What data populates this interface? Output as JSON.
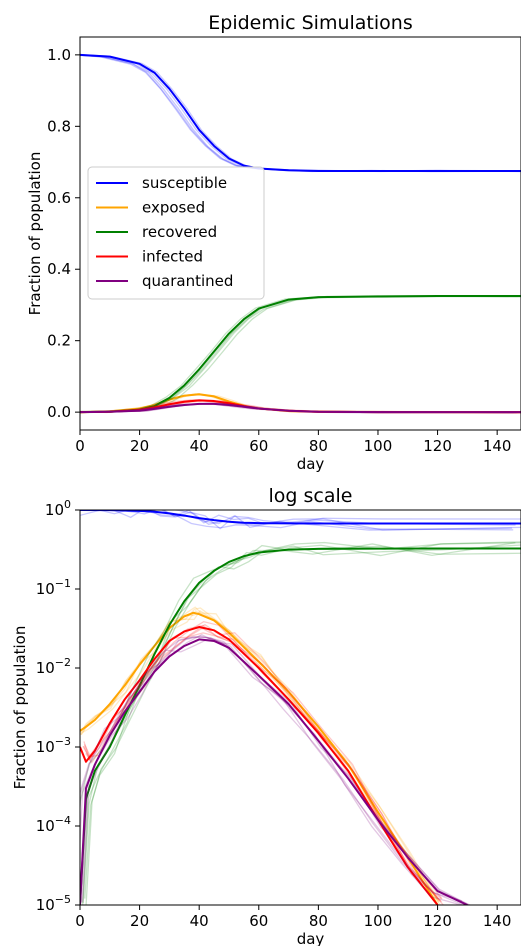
{
  "chart_data": [
    {
      "type": "line",
      "title": "Epidemic Simulations",
      "xlabel": "day",
      "ylabel": "Fraction of population",
      "xlim": [
        0,
        148
      ],
      "ylim": [
        -0.05,
        1.05
      ],
      "yscale": "linear",
      "x_ticks": [
        0,
        20,
        40,
        60,
        80,
        100,
        120,
        140
      ],
      "y_ticks": [
        0.0,
        0.2,
        0.4,
        0.6,
        0.8,
        1.0
      ],
      "y_tick_labels": [
        "0.0",
        "0.2",
        "0.4",
        "0.6",
        "0.8",
        "1.0"
      ],
      "legend": {
        "placement": "center-left"
      },
      "grid": false,
      "series": [
        {
          "name": "susceptible",
          "color": "#0000ff",
          "x": [
            0,
            10,
            20,
            25,
            30,
            35,
            40,
            45,
            50,
            55,
            60,
            70,
            80,
            100,
            120,
            148
          ],
          "values": [
            1.0,
            0.995,
            0.975,
            0.95,
            0.905,
            0.85,
            0.79,
            0.745,
            0.71,
            0.69,
            0.682,
            0.677,
            0.675,
            0.675,
            0.675,
            0.675
          ]
        },
        {
          "name": "exposed",
          "color": "#ffa500",
          "x": [
            0,
            10,
            20,
            25,
            30,
            35,
            40,
            45,
            50,
            55,
            60,
            70,
            80,
            100,
            148
          ],
          "values": [
            0.0,
            0.002,
            0.01,
            0.02,
            0.035,
            0.046,
            0.05,
            0.044,
            0.03,
            0.018,
            0.01,
            0.003,
            0.001,
            0.0,
            0.0
          ]
        },
        {
          "name": "recovered",
          "color": "#008000",
          "x": [
            0,
            10,
            20,
            25,
            30,
            35,
            40,
            45,
            50,
            55,
            60,
            70,
            80,
            100,
            120,
            148
          ],
          "values": [
            0.0,
            0.001,
            0.007,
            0.017,
            0.04,
            0.075,
            0.12,
            0.17,
            0.22,
            0.26,
            0.29,
            0.315,
            0.322,
            0.324,
            0.325,
            0.325
          ]
        },
        {
          "name": "infected",
          "color": "#ff0000",
          "x": [
            0,
            10,
            20,
            25,
            30,
            35,
            40,
            45,
            50,
            55,
            60,
            70,
            80,
            100,
            148
          ],
          "values": [
            0.0,
            0.001,
            0.006,
            0.013,
            0.022,
            0.029,
            0.033,
            0.031,
            0.025,
            0.017,
            0.01,
            0.004,
            0.001,
            0.0,
            0.0
          ]
        },
        {
          "name": "quarantined",
          "color": "#800080",
          "x": [
            0,
            10,
            20,
            25,
            30,
            35,
            40,
            45,
            50,
            55,
            60,
            70,
            80,
            100,
            148
          ],
          "values": [
            0.0,
            0.001,
            0.004,
            0.009,
            0.015,
            0.02,
            0.023,
            0.023,
            0.02,
            0.015,
            0.01,
            0.004,
            0.001,
            0.0,
            0.0
          ]
        }
      ]
    },
    {
      "type": "line",
      "title": "log scale",
      "xlabel": "day",
      "ylabel": "Fraction of population",
      "xlim": [
        0,
        148
      ],
      "ylim": [
        1e-05,
        1
      ],
      "yscale": "log",
      "x_ticks": [
        0,
        20,
        40,
        60,
        80,
        100,
        120,
        140
      ],
      "y_ticks": [
        1,
        0.1,
        0.01,
        0.001,
        0.0001,
        1e-05
      ],
      "y_tick_labels": [
        {
          "base": "10",
          "exp": "0"
        },
        {
          "base": "10",
          "exp": "−1"
        },
        {
          "base": "10",
          "exp": "−2"
        },
        {
          "base": "10",
          "exp": "−3"
        },
        {
          "base": "10",
          "exp": "−4"
        },
        {
          "base": "10",
          "exp": "−5"
        }
      ],
      "grid": false,
      "series": [
        {
          "name": "susceptible",
          "color": "#0000ff",
          "x": [
            0,
            10,
            20,
            25,
            30,
            35,
            40,
            45,
            50,
            55,
            60,
            70,
            80,
            100,
            148
          ],
          "values": [
            1.0,
            0.995,
            0.975,
            0.95,
            0.905,
            0.85,
            0.79,
            0.745,
            0.71,
            0.69,
            0.682,
            0.677,
            0.675,
            0.675,
            0.675
          ]
        },
        {
          "name": "exposed",
          "color": "#ffa500",
          "x": [
            0,
            2,
            5,
            10,
            15,
            20,
            25,
            30,
            35,
            38,
            40,
            45,
            50,
            60,
            70,
            80,
            90,
            100,
            110,
            120
          ],
          "values": [
            0.0016,
            0.0018,
            0.0022,
            0.0035,
            0.006,
            0.011,
            0.019,
            0.032,
            0.045,
            0.05,
            0.048,
            0.04,
            0.028,
            0.012,
            0.005,
            0.0018,
            0.0006,
            0.00015,
            4e-05,
            1e-05
          ]
        },
        {
          "name": "recovered",
          "color": "#008000",
          "x": [
            0,
            2,
            5,
            10,
            15,
            20,
            25,
            30,
            35,
            40,
            45,
            50,
            55,
            60,
            70,
            80,
            100,
            120,
            148
          ],
          "values": [
            1e-05,
            0.00022,
            0.0005,
            0.001,
            0.0025,
            0.006,
            0.015,
            0.035,
            0.07,
            0.12,
            0.17,
            0.22,
            0.26,
            0.29,
            0.315,
            0.322,
            0.324,
            0.325,
            0.325
          ]
        },
        {
          "name": "infected",
          "color": "#ff0000",
          "x": [
            0,
            2,
            5,
            10,
            15,
            20,
            25,
            30,
            35,
            40,
            45,
            50,
            60,
            70,
            80,
            90,
            100,
            110,
            120
          ],
          "values": [
            0.001,
            0.00065,
            0.0009,
            0.002,
            0.004,
            0.007,
            0.013,
            0.022,
            0.029,
            0.033,
            0.03,
            0.023,
            0.01,
            0.004,
            0.0015,
            0.0005,
            0.00012,
            3e-05,
            1e-05
          ]
        },
        {
          "name": "quarantined",
          "color": "#800080",
          "x": [
            0,
            2,
            5,
            10,
            15,
            20,
            25,
            30,
            35,
            40,
            45,
            50,
            60,
            70,
            80,
            90,
            100,
            110,
            120,
            130
          ],
          "values": [
            1e-05,
            0.0003,
            0.0006,
            0.0014,
            0.0028,
            0.005,
            0.009,
            0.014,
            0.019,
            0.023,
            0.022,
            0.018,
            0.008,
            0.0035,
            0.0012,
            0.0004,
            0.00012,
            4e-05,
            1.5e-05,
            1e-05
          ]
        }
      ]
    }
  ]
}
